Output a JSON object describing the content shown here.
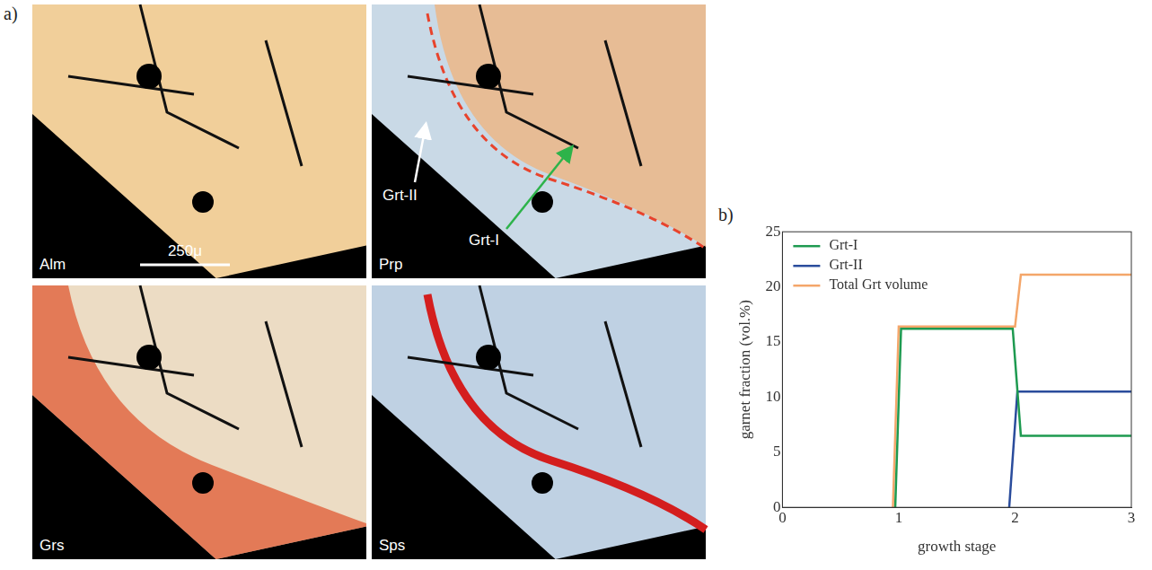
{
  "panel_a": {
    "label": "a)",
    "maps": [
      "Alm",
      "Prp",
      "Grs",
      "Sps"
    ],
    "scale_bar": "250μ",
    "annotations": [
      "Grt-II",
      "Grt-I"
    ]
  },
  "chart_data": {
    "label": "b)",
    "type": "line",
    "x_label": "growth stage",
    "y_label": "garnet fraction (vol.%)",
    "xlim": [
      0,
      3
    ],
    "xticks": [
      0,
      1,
      2,
      3
    ],
    "ylim": [
      0,
      25
    ],
    "yticks": [
      0,
      5,
      10,
      15,
      20,
      25
    ],
    "grid": false,
    "legend": "upper left",
    "series": [
      {
        "name": "Grt-I",
        "color": "#1e9a50",
        "x": [
          0.97,
          1.02,
          1.98,
          2.05,
          3
        ],
        "values": [
          0,
          16.2,
          16.2,
          6.5,
          6.5
        ]
      },
      {
        "name": "Grt-II",
        "color": "#2a4c9c",
        "x": [
          1.95,
          2.02,
          3
        ],
        "values": [
          0,
          10.5,
          10.5
        ]
      },
      {
        "name": "Total Grt volume",
        "color": "#f4a66a",
        "x": [
          0.95,
          1.0,
          2.0,
          2.05,
          3
        ],
        "values": [
          0,
          16.4,
          16.4,
          21.1,
          21.1
        ]
      }
    ]
  }
}
